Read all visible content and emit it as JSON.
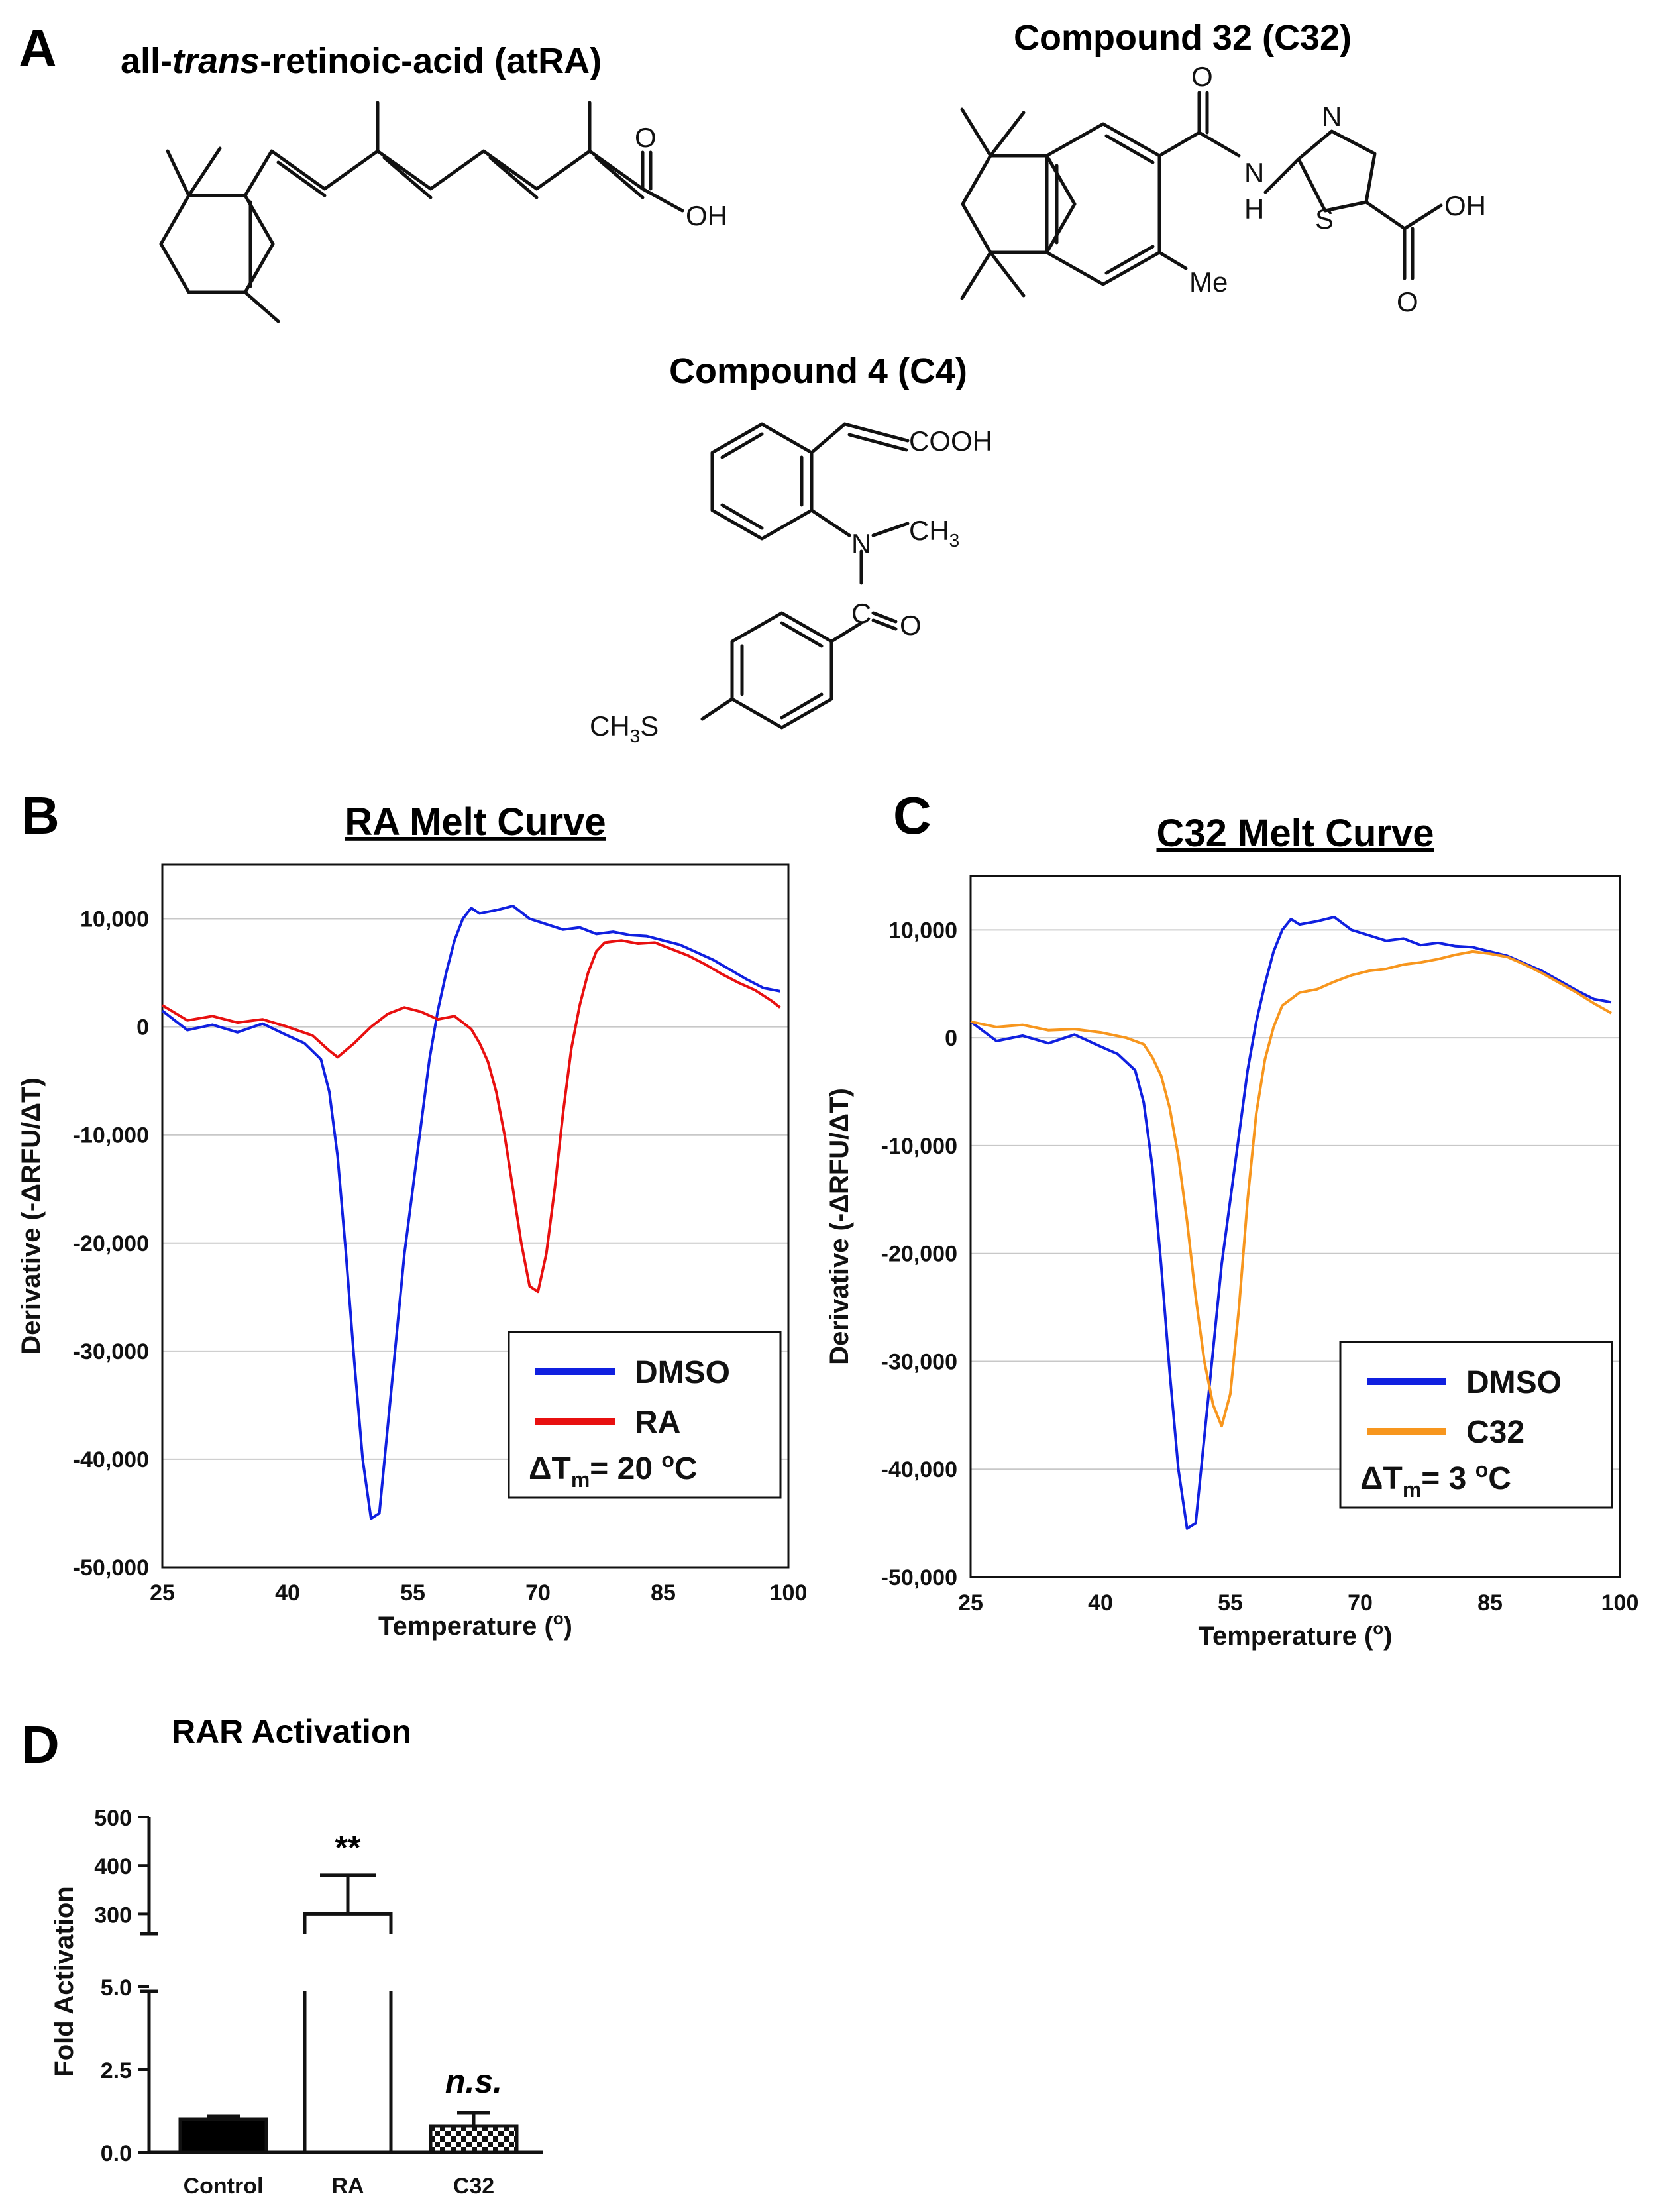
{
  "panels": {
    "a": "A",
    "b": "B",
    "c": "C",
    "d": "D"
  },
  "structures": {
    "atra_title_prefix": "all-",
    "atra_title_italic": "trans",
    "atra_title_suffix": "-retinoic-acid (atRA)",
    "c32_title": "Compound 32 (C32)",
    "c4_title": "Compound 4 (C4)",
    "atoms": {
      "O": "O",
      "OH": "OH",
      "N": "N",
      "H": "H",
      "S": "S",
      "Me": "Me",
      "COOH": "COOH",
      "CH3": "CH",
      "sub3": "3",
      "C": "C",
      "CH3S": "CH",
      "S_after": "S"
    }
  },
  "colors": {
    "dmso": "#1020e0",
    "ra": "#e81010",
    "c32": "#f7961e",
    "bar_control": "#000000",
    "grid": "#c8c8c8"
  },
  "chart_data": [
    {
      "id": "B",
      "type": "line",
      "title": "RA Melt Curve",
      "xlabel": "Temperature (oC)",
      "ylabel": "Derivative (-ΔRFU/ΔT)",
      "xlim": [
        25,
        100
      ],
      "ylim": [
        -50000,
        15000
      ],
      "xticks": [
        "25",
        "40",
        "55",
        "70",
        "85",
        "100"
      ],
      "yticks": [
        "10,000",
        "0",
        "-10,000",
        "-20,000",
        "-30,000",
        "-40,000",
        "-50,000"
      ],
      "grid": true,
      "legend_position": "bottom-right",
      "annotation": "ΔTm= 20 oC",
      "series": [
        {
          "name": "DMSO",
          "color": "#1020e0",
          "x": [
            25,
            28,
            31,
            34,
            37,
            40,
            42,
            44,
            45,
            46,
            47,
            48,
            49,
            50,
            51,
            52,
            53,
            54,
            55,
            56,
            57,
            58,
            59,
            60,
            61,
            62,
            63,
            65,
            67,
            69,
            71,
            73,
            75,
            77,
            79,
            81,
            83,
            85,
            87,
            89,
            91,
            93,
            95,
            97,
            99
          ],
          "y": [
            1500,
            -300,
            200,
            -500,
            300,
            -800,
            -1500,
            -3000,
            -6000,
            -12000,
            -21000,
            -31000,
            -40000,
            -45500,
            -45000,
            -37000,
            -29000,
            -21000,
            -15000,
            -9000,
            -3000,
            1500,
            5000,
            8000,
            10000,
            11000,
            10500,
            10800,
            11200,
            10000,
            9500,
            9000,
            9200,
            8600,
            8800,
            8500,
            8400,
            8000,
            7600,
            6900,
            6200,
            5300,
            4400,
            3600,
            3300
          ]
        },
        {
          "name": "RA",
          "color": "#e81010",
          "x": [
            25,
            28,
            31,
            34,
            37,
            40,
            43,
            45,
            46,
            48,
            50,
            52,
            54,
            56,
            58,
            60,
            62,
            63,
            64,
            65,
            66,
            67,
            68,
            69,
            70,
            71,
            72,
            73,
            74,
            75,
            76,
            77,
            78,
            80,
            82,
            84,
            86,
            88,
            90,
            92,
            94,
            96,
            98,
            99
          ],
          "y": [
            2000,
            600,
            1000,
            400,
            700,
            0,
            -800,
            -2200,
            -2800,
            -1500,
            0,
            1200,
            1800,
            1400,
            700,
            1000,
            -200,
            -1500,
            -3200,
            -6000,
            -10000,
            -15000,
            -20000,
            -24000,
            -24500,
            -21000,
            -15000,
            -8000,
            -2000,
            2000,
            5000,
            7000,
            7800,
            8000,
            7700,
            7800,
            7200,
            6600,
            5800,
            4900,
            4100,
            3400,
            2400,
            1800
          ]
        }
      ]
    },
    {
      "id": "C",
      "type": "line",
      "title": "C32 Melt Curve",
      "xlabel": "Temperature (oC)",
      "ylabel": "Derivative (-ΔRFU/ΔT)",
      "xlim": [
        25,
        100
      ],
      "ylim": [
        -50000,
        15000
      ],
      "xticks": [
        "25",
        "40",
        "55",
        "70",
        "85",
        "100"
      ],
      "yticks": [
        "10,000",
        "0",
        "-10,000",
        "-20,000",
        "-30,000",
        "-40,000",
        "-50,000"
      ],
      "grid": true,
      "legend_position": "bottom-right",
      "annotation": "ΔTm= 3 oC",
      "series": [
        {
          "name": "DMSO",
          "color": "#1020e0",
          "x": [
            25,
            28,
            31,
            34,
            37,
            40,
            42,
            44,
            45,
            46,
            47,
            48,
            49,
            50,
            51,
            52,
            53,
            54,
            55,
            56,
            57,
            58,
            59,
            60,
            61,
            62,
            63,
            65,
            67,
            69,
            71,
            73,
            75,
            77,
            79,
            81,
            83,
            85,
            87,
            89,
            91,
            93,
            95,
            97,
            99
          ],
          "y": [
            1500,
            -300,
            200,
            -500,
            300,
            -800,
            -1500,
            -3000,
            -6000,
            -12000,
            -21000,
            -31000,
            -40000,
            -45500,
            -45000,
            -37000,
            -29000,
            -21000,
            -15000,
            -9000,
            -3000,
            1500,
            5000,
            8000,
            10000,
            11000,
            10500,
            10800,
            11200,
            10000,
            9500,
            9000,
            9200,
            8600,
            8800,
            8500,
            8400,
            8000,
            7600,
            6900,
            6200,
            5300,
            4400,
            3600,
            3300
          ]
        },
        {
          "name": "C32",
          "color": "#f7961e",
          "x": [
            25,
            28,
            31,
            34,
            37,
            40,
            43,
            45,
            46,
            47,
            48,
            49,
            50,
            51,
            52,
            53,
            54,
            55,
            56,
            57,
            58,
            59,
            60,
            61,
            62,
            63,
            65,
            67,
            69,
            71,
            73,
            75,
            77,
            79,
            81,
            83,
            85,
            87,
            89,
            91,
            93,
            95,
            97,
            99
          ],
          "y": [
            1500,
            1000,
            1200,
            700,
            800,
            500,
            0,
            -600,
            -1800,
            -3500,
            -6500,
            -11000,
            -17000,
            -24000,
            -30000,
            -34000,
            -36000,
            -33000,
            -25000,
            -15000,
            -7000,
            -2000,
            1000,
            3000,
            3600,
            4200,
            4500,
            5200,
            5800,
            6200,
            6400,
            6800,
            7000,
            7300,
            7700,
            8000,
            7800,
            7500,
            6800,
            6000,
            5100,
            4200,
            3200,
            2300
          ]
        }
      ]
    },
    {
      "id": "D",
      "type": "bar",
      "title": "RAR  Activation",
      "ylabel": "Fold Activation",
      "categories": [
        "Control",
        "RA",
        "C32"
      ],
      "values": [
        1.0,
        300,
        0.8
      ],
      "errors": [
        0.1,
        80,
        0.4
      ],
      "fills": [
        "solid",
        "open",
        "checkered"
      ],
      "significance": [
        "",
        "**",
        "n.s."
      ],
      "axis_break": true,
      "lower_ylim": [
        0,
        5.0
      ],
      "upper_ylim": [
        250,
        500
      ],
      "lower_yticks": [
        "0.0",
        "2.5",
        "5.0"
      ],
      "upper_yticks": [
        "300",
        "400",
        "500"
      ]
    }
  ]
}
